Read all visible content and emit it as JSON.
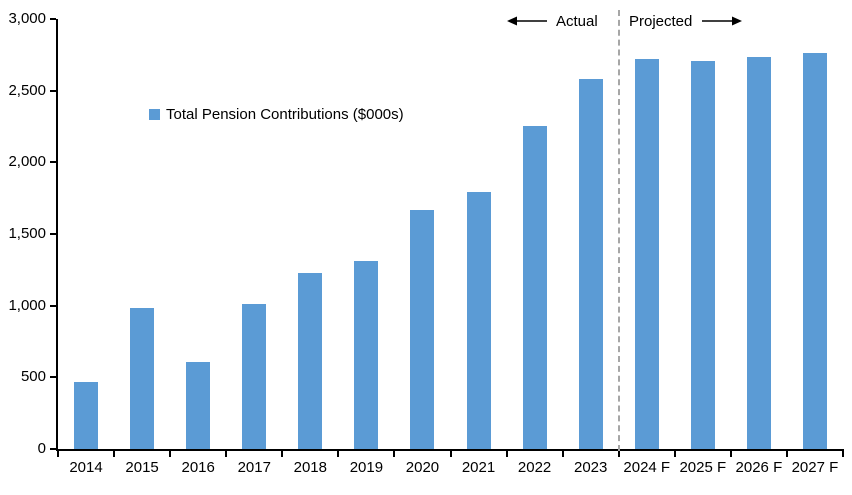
{
  "legend": {
    "label": "Total Pension Contributions ($000s)"
  },
  "annotations": {
    "actual_label": "Actual",
    "projected_label": "Projected"
  },
  "colors": {
    "bar": "#5B9BD5",
    "divider": "#A6A6A6",
    "axis": "#000000",
    "text": "#000000"
  },
  "chart_data": {
    "type": "bar",
    "title": "",
    "xlabel": "",
    "ylabel": "",
    "categories": [
      "2014",
      "2015",
      "2016",
      "2017",
      "2018",
      "2019",
      "2020",
      "2021",
      "2022",
      "2023",
      "2024 F",
      "2025 F",
      "2026 F",
      "2027 F"
    ],
    "values": [
      470,
      985,
      605,
      1015,
      1230,
      1310,
      1665,
      1795,
      2255,
      2580,
      2720,
      2710,
      2735,
      2765
    ],
    "series_name": "Total Pension Contributions ($000s)",
    "ylim": [
      0,
      3000
    ],
    "ytick_step": 500,
    "ytick_labels": [
      "0",
      "500",
      "1,000",
      "1,500",
      "2,000",
      "2,500",
      "3,000"
    ],
    "grid": false,
    "legend_position": "inside-upper-left",
    "bar_color": "#5B9BD5",
    "actual_segment": "Actual",
    "projected_segment": "Projected",
    "projected_start_index": 10
  }
}
